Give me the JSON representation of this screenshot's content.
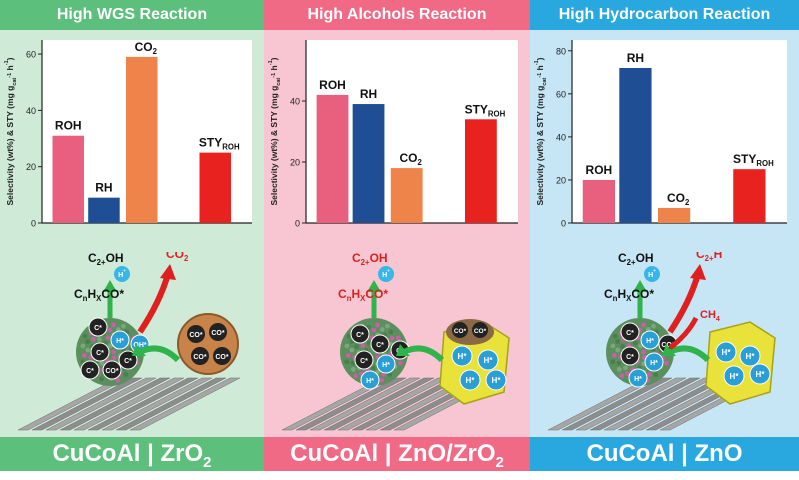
{
  "colors": {
    "panel_bg": [
      "#cfead6",
      "#f7c6d2",
      "#c6e6f6"
    ],
    "banner_bg": [
      "#5cbf7c",
      "#f06a86",
      "#29a8e0"
    ],
    "footer_bg": [
      "#5cbf7c",
      "#f06a86",
      "#29a8e0"
    ],
    "bars": {
      "ROH": "#e9607e",
      "RH": "#1f4e95",
      "CO2": "#ee8449",
      "STY": "#e8221e"
    }
  },
  "panels": [
    {
      "title": "High WGS Reaction",
      "footer": "CuCoAl | ZrO",
      "footer_sub": "2",
      "species": {
        "top": "C",
        "top_sub": "2+",
        "top_end": "OH",
        "h": "H",
        "h_sup": "+",
        "mid": "C",
        "mid_sub1": "n",
        "mid_mid": "H",
        "mid_sub2": "X",
        "mid_end": "CO*",
        "side": "CO",
        "side_sub": "2"
      },
      "atoms": [
        "C*",
        "H*",
        "OH*",
        "CO*"
      ]
    },
    {
      "title": "High Alcohols Reaction",
      "footer": "CuCoAl | ZnO/ZrO",
      "footer_sub": "2",
      "species": {
        "top": "C",
        "top_sub": "2+",
        "top_end": "OH",
        "h": "H",
        "h_sup": "+",
        "mid": "C",
        "mid_sub1": "n",
        "mid_mid": "H",
        "mid_sub2": "X",
        "mid_end": "CO*"
      },
      "atoms": [
        "C*",
        "H*",
        "CO*"
      ]
    },
    {
      "title": "High Hydrocarbon Reaction",
      "footer": "CuCoAl | ZnO",
      "footer_sub": "",
      "species": {
        "top": "C",
        "top_sub": "2+",
        "top_end": "OH",
        "h": "H",
        "h_sup": "+",
        "mid": "C",
        "mid_sub1": "n",
        "mid_mid": "H",
        "mid_sub2": "X",
        "mid_end": "CO*",
        "side": "C",
        "side_sub": "2+",
        "side_end": "H",
        "side2": "CH",
        "side2_sub": "4"
      },
      "atoms": [
        "C*",
        "H*",
        "CO*"
      ]
    }
  ],
  "chart_data": [
    {
      "type": "bar",
      "ylabel": "Selectivity (wt%) & STY (mg g",
      "ylabel_sub": "cat",
      "ylabel_sup": "-1",
      "ylabel_end": " h",
      "ylabel_end_sup": "-1",
      "ylabel_close": ")",
      "ylim": [
        0,
        65
      ],
      "yticks": [
        "0",
        "20",
        "40",
        "60"
      ],
      "series": [
        {
          "label": "ROH",
          "label_sub": "",
          "value": 31
        },
        {
          "label": "RH",
          "label_sub": "",
          "value": 9
        },
        {
          "label": "CO",
          "label_sub": "2",
          "value": 59
        },
        {
          "label": "STY",
          "label_sub": "ROH",
          "value": 25
        }
      ]
    },
    {
      "type": "bar",
      "ylabel": "Selectivity (wt%) & STY (mg g",
      "ylabel_sub": "cat",
      "ylabel_sup": "-1",
      "ylabel_end": " h",
      "ylabel_end_sup": "-1",
      "ylabel_close": ")",
      "ylim": [
        0,
        60
      ],
      "yticks": [
        "0",
        "20",
        "40"
      ],
      "series": [
        {
          "label": "ROH",
          "label_sub": "",
          "value": 42
        },
        {
          "label": "RH",
          "label_sub": "",
          "value": 39
        },
        {
          "label": "CO",
          "label_sub": "2",
          "value": 18
        },
        {
          "label": "STY",
          "label_sub": "ROH",
          "value": 34
        }
      ]
    },
    {
      "type": "bar",
      "ylabel": "Selectivity (wt%) & STY (mg g",
      "ylabel_sub": "cat",
      "ylabel_sup": "-1",
      "ylabel_end": " h",
      "ylabel_end_sup": "-1",
      "ylabel_close": ")",
      "ylim": [
        0,
        85
      ],
      "yticks": [
        "0",
        "20",
        "40",
        "60",
        "80"
      ],
      "series": [
        {
          "label": "ROH",
          "label_sub": "",
          "value": 20
        },
        {
          "label": "RH",
          "label_sub": "",
          "value": 72
        },
        {
          "label": "CO",
          "label_sub": "2",
          "value": 7
        },
        {
          "label": "STY",
          "label_sub": "ROH",
          "value": 25
        }
      ]
    }
  ]
}
